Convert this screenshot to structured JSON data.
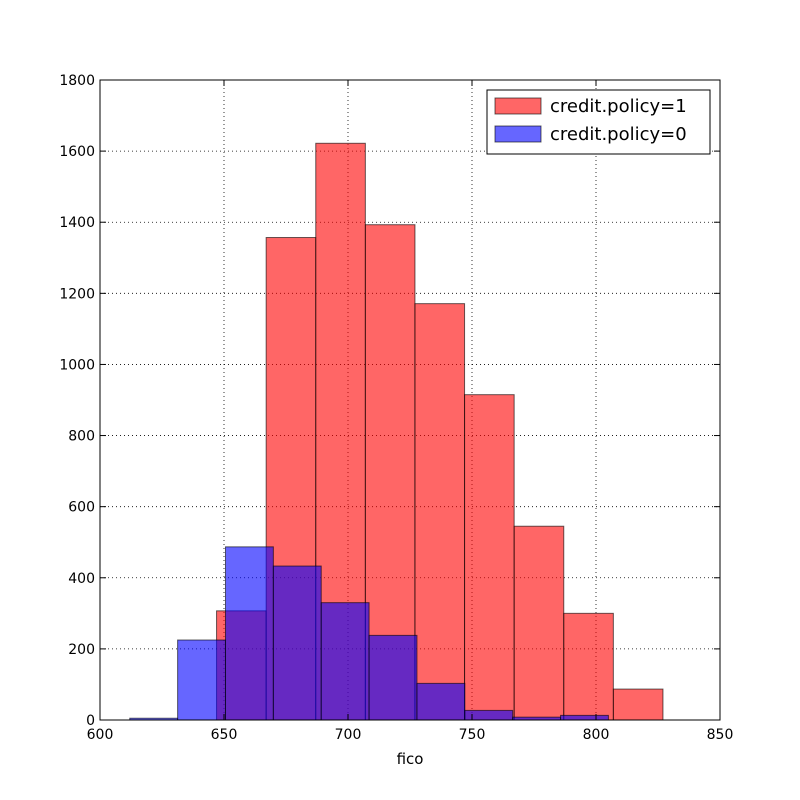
{
  "chart_data": {
    "type": "bar",
    "title": "",
    "xlabel": "fico",
    "ylabel": "",
    "xlim": [
      600,
      850
    ],
    "ylim": [
      0,
      1800
    ],
    "xticks": [
      600,
      650,
      700,
      750,
      800,
      850
    ],
    "yticks": [
      0,
      200,
      400,
      600,
      800,
      1000,
      1200,
      1400,
      1600,
      1800
    ],
    "grid": true,
    "legend_position": "top-right",
    "series": [
      {
        "name": "credit.policy=1",
        "color": "#ff0000",
        "opacity": 0.6,
        "bin_edges": [
          647,
          667,
          687,
          707,
          727,
          747,
          767,
          787,
          807,
          827
        ],
        "values": [
          307,
          1357,
          1622,
          1393,
          1171,
          915,
          545,
          300,
          87
        ]
      },
      {
        "name": "credit.policy=0",
        "color": "#0000ff",
        "opacity": 0.6,
        "bin_edges": [
          612,
          631.3,
          650.6,
          669.9,
          689.2,
          708.5,
          727.8,
          747.1,
          766.4,
          785.7,
          805
        ],
        "values": [
          5,
          225,
          487,
          433,
          330,
          238,
          103,
          27,
          8,
          13
        ]
      }
    ]
  }
}
